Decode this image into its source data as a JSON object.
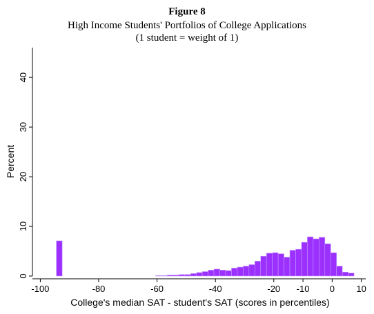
{
  "chart_data": {
    "type": "histogram",
    "title": "Figure 8",
    "subtitle": [
      "High Income Students' Portfolios of College Applications",
      "(1 student = weight of 1)"
    ],
    "x_label": "College's median SAT - student's SAT (scores in percentiles)",
    "y_label": "Percent",
    "color": "#9b30ff",
    "bins": [
      -94.5,
      -92.5,
      -90.5,
      -88.5,
      -86.5,
      -84.5,
      -82.5,
      -80.5,
      -78.5,
      -76.5,
      -74.5,
      -72.5,
      -70.5,
      -68.5,
      -66.5,
      -64.5,
      -62.5,
      -60.5,
      -58.5,
      -56.5,
      -54.5,
      -52.5,
      -50.5,
      -48.5,
      -46.5,
      -44.5,
      -42.5,
      -40.5,
      -38.5,
      -36.5,
      -34.5,
      -32.5,
      -30.5,
      -28.5,
      -26.5,
      -24.5,
      -22.5,
      -20.5,
      -18.5,
      -16.5,
      -14.5,
      -12.5,
      -10.5,
      -8.5,
      -6.5,
      -4.5,
      -2.5,
      -0.5,
      1.5,
      3.5,
      5.5,
      7.5
    ],
    "values": [
      7.1,
      0,
      0,
      0,
      0,
      0,
      0,
      0,
      0,
      0,
      0,
      0,
      0,
      0,
      0,
      0,
      0,
      0.1,
      0.1,
      0.2,
      0.2,
      0.3,
      0.3,
      0.5,
      0.7,
      0.9,
      1.2,
      1.4,
      1.2,
      1.1,
      1.6,
      1.8,
      2.0,
      2.3,
      3.0,
      4.0,
      4.6,
      4.7,
      4.5,
      3.8,
      5.2,
      5.4,
      6.8,
      7.9,
      7.5,
      7.8,
      6.5,
      4.7,
      2.0,
      0.8,
      0.6
    ],
    "xlim": [
      -102.7,
      11.5
    ],
    "ylim": [
      0,
      46
    ],
    "xticks": [
      -100,
      -80,
      -60,
      -40,
      -20,
      -10,
      0,
      10
    ],
    "yticks": [
      0,
      10,
      20,
      30,
      40
    ]
  }
}
